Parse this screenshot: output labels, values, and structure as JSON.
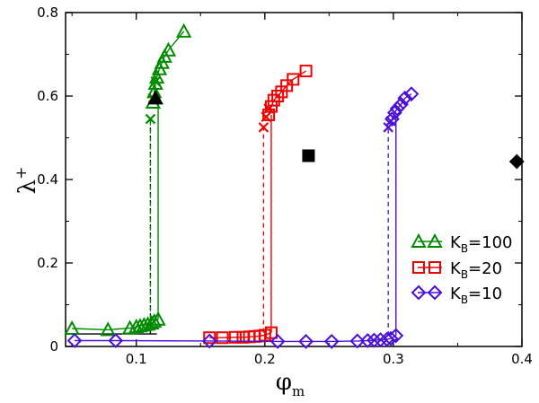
{
  "chart_data": {
    "type": "scatter",
    "xlabel": "φ",
    "xlabel_sub": "m",
    "ylabel": "λ",
    "ylabel_sup": "+",
    "xlim": [
      0.045,
      0.4
    ],
    "ylim": [
      0,
      0.8
    ],
    "xticks": [
      0.1,
      0.2,
      0.3,
      0.4
    ],
    "xtick_labels": [
      "0.1",
      "0.2",
      "0.3",
      "0.4"
    ],
    "yticks": [
      0,
      0.2,
      0.4,
      0.6,
      0.8
    ],
    "ytick_labels": [
      "0",
      "0.2",
      "0.4",
      "0.6",
      "0.8"
    ],
    "legend_position": "lower-right",
    "series": [
      {
        "name": "K_B=100",
        "legend_label": "K",
        "legend_sub": "B",
        "legend_value": "=100",
        "color": "#008b00",
        "marker": "triangle",
        "lower": [
          [
            0.05,
            0.043
          ],
          [
            0.078,
            0.04
          ],
          [
            0.095,
            0.044
          ],
          [
            0.1,
            0.047
          ],
          [
            0.103,
            0.049
          ],
          [
            0.106,
            0.051
          ],
          [
            0.109,
            0.053
          ],
          [
            0.112,
            0.056
          ],
          [
            0.114,
            0.06
          ],
          [
            0.117,
            0.065
          ]
        ],
        "upper": [
          [
            0.113,
            0.585
          ],
          [
            0.114,
            0.61
          ],
          [
            0.115,
            0.63
          ],
          [
            0.116,
            0.645
          ],
          [
            0.118,
            0.665
          ],
          [
            0.12,
            0.68
          ],
          [
            0.122,
            0.695
          ],
          [
            0.125,
            0.71
          ],
          [
            0.137,
            0.755
          ]
        ],
        "crosses": [
          [
            0.111,
            0.545
          ],
          [
            0.113,
            0.595
          ],
          [
            0.115,
            0.635
          ]
        ],
        "jump_x": 0.117,
        "dashed_x": 0.111
      },
      {
        "name": "K_B=20",
        "legend_label": "K",
        "legend_sub": "B",
        "legend_value": "=20",
        "color": "#ee0000",
        "marker": "square",
        "lower": [
          [
            0.157,
            0.021
          ],
          [
            0.167,
            0.021
          ],
          [
            0.177,
            0.022
          ],
          [
            0.183,
            0.022
          ],
          [
            0.188,
            0.023
          ],
          [
            0.192,
            0.024
          ],
          [
            0.196,
            0.025
          ],
          [
            0.2,
            0.027
          ],
          [
            0.205,
            0.033
          ]
        ],
        "upper": [
          [
            0.203,
            0.555
          ],
          [
            0.205,
            0.575
          ],
          [
            0.207,
            0.59
          ],
          [
            0.21,
            0.6
          ],
          [
            0.213,
            0.61
          ],
          [
            0.217,
            0.625
          ],
          [
            0.222,
            0.64
          ],
          [
            0.232,
            0.66
          ]
        ],
        "crosses": [
          [
            0.199,
            0.525
          ],
          [
            0.201,
            0.55
          ],
          [
            0.203,
            0.57
          ]
        ],
        "jump_x": 0.205,
        "dashed_x": 0.199
      },
      {
        "name": "K_B=10",
        "legend_label": "K",
        "legend_sub": "B",
        "legend_value": "=10",
        "color": "#4b0fd8",
        "marker": "diamond",
        "lower": [
          [
            0.052,
            0.014
          ],
          [
            0.084,
            0.014
          ],
          [
            0.157,
            0.013
          ],
          [
            0.21,
            0.012
          ],
          [
            0.232,
            0.012
          ],
          [
            0.252,
            0.012
          ],
          [
            0.272,
            0.013
          ],
          [
            0.28,
            0.014
          ],
          [
            0.285,
            0.015
          ],
          [
            0.29,
            0.016
          ],
          [
            0.295,
            0.017
          ],
          [
            0.298,
            0.019
          ],
          [
            0.302,
            0.026
          ]
        ],
        "upper": [
          [
            0.299,
            0.545
          ],
          [
            0.301,
            0.56
          ],
          [
            0.303,
            0.57
          ],
          [
            0.306,
            0.58
          ],
          [
            0.309,
            0.595
          ],
          [
            0.314,
            0.605
          ]
        ],
        "crosses": [
          [
            0.296,
            0.525
          ],
          [
            0.298,
            0.54
          ]
        ],
        "jump_x": 0.302,
        "dashed_x": 0.296
      }
    ],
    "black_line": [
      [
        0.05,
        0.03
      ],
      [
        0.116,
        0.03
      ]
    ],
    "black_dashed_x": 0.111,
    "black_dashed_range": [
      0.03,
      0.545
    ],
    "black_markers": [
      {
        "shape": "triangle",
        "x": 0.115,
        "y": 0.595
      },
      {
        "shape": "square",
        "x": 0.234,
        "y": 0.457
      },
      {
        "shape": "diamond",
        "x": 0.396,
        "y": 0.443
      }
    ]
  }
}
